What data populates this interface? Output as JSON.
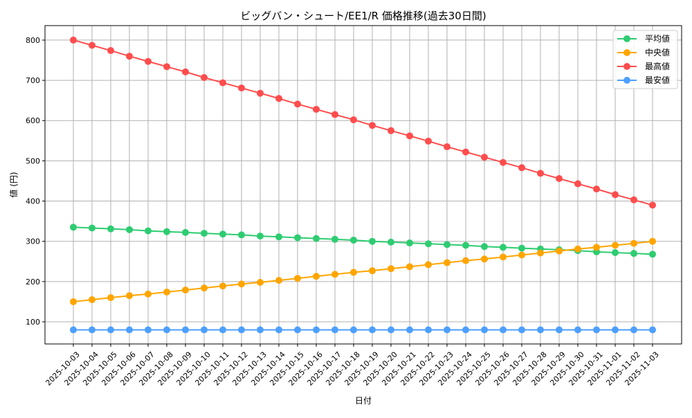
{
  "chart_data": {
    "type": "line",
    "title": "ビッグバン・シュート/EE1/R 価格推移(過去30日間)",
    "xlabel": "日付",
    "ylabel": "値 (円)",
    "ylim": [
      45,
      836
    ],
    "yticks": [
      100,
      200,
      300,
      400,
      500,
      600,
      700,
      800
    ],
    "grid": true,
    "legend_position": "top-right",
    "x": [
      "2025-10-03",
      "2025-10-04",
      "2025-10-05",
      "2025-10-06",
      "2025-10-07",
      "2025-10-08",
      "2025-10-09",
      "2025-10-10",
      "2025-10-11",
      "2025-10-12",
      "2025-10-13",
      "2025-10-14",
      "2025-10-15",
      "2025-10-16",
      "2025-10-17",
      "2025-10-18",
      "2025-10-19",
      "2025-10-20",
      "2025-10-21",
      "2025-10-22",
      "2025-10-23",
      "2025-10-24",
      "2025-10-25",
      "2025-10-26",
      "2025-10-27",
      "2025-10-28",
      "2025-10-29",
      "2025-10-30",
      "2025-10-31",
      "2025-11-01",
      "2025-11-02",
      "2025-11-03"
    ],
    "series": [
      {
        "name": "平均値",
        "color": "#2ecc71",
        "values": [
          335,
          333,
          331,
          329,
          326,
          324,
          322,
          320,
          318,
          316,
          313,
          311,
          309,
          307,
          305,
          303,
          300,
          298,
          296,
          294,
          292,
          290,
          287,
          285,
          283,
          281,
          279,
          277,
          274,
          272,
          270,
          268
        ]
      },
      {
        "name": "中央値",
        "color": "#ffa500",
        "values": [
          150,
          155,
          160,
          165,
          169,
          174,
          179,
          184,
          189,
          194,
          198,
          203,
          208,
          213,
          218,
          223,
          227,
          232,
          237,
          242,
          247,
          252,
          256,
          261,
          266,
          271,
          276,
          281,
          285,
          290,
          295,
          300
        ]
      },
      {
        "name": "最高値",
        "color": "#ff4d4d",
        "values": [
          800,
          787,
          774,
          760,
          747,
          734,
          721,
          707,
          694,
          681,
          668,
          655,
          641,
          628,
          615,
          602,
          588,
          575,
          562,
          549,
          535,
          522,
          509,
          496,
          483,
          469,
          456,
          443,
          430,
          416,
          403,
          390
        ]
      },
      {
        "name": "最安値",
        "color": "#4d9fff",
        "values": [
          80,
          80,
          80,
          80,
          80,
          80,
          80,
          80,
          80,
          80,
          80,
          80,
          80,
          80,
          80,
          80,
          80,
          80,
          80,
          80,
          80,
          80,
          80,
          80,
          80,
          80,
          80,
          80,
          80,
          80,
          80,
          80
        ]
      }
    ]
  }
}
